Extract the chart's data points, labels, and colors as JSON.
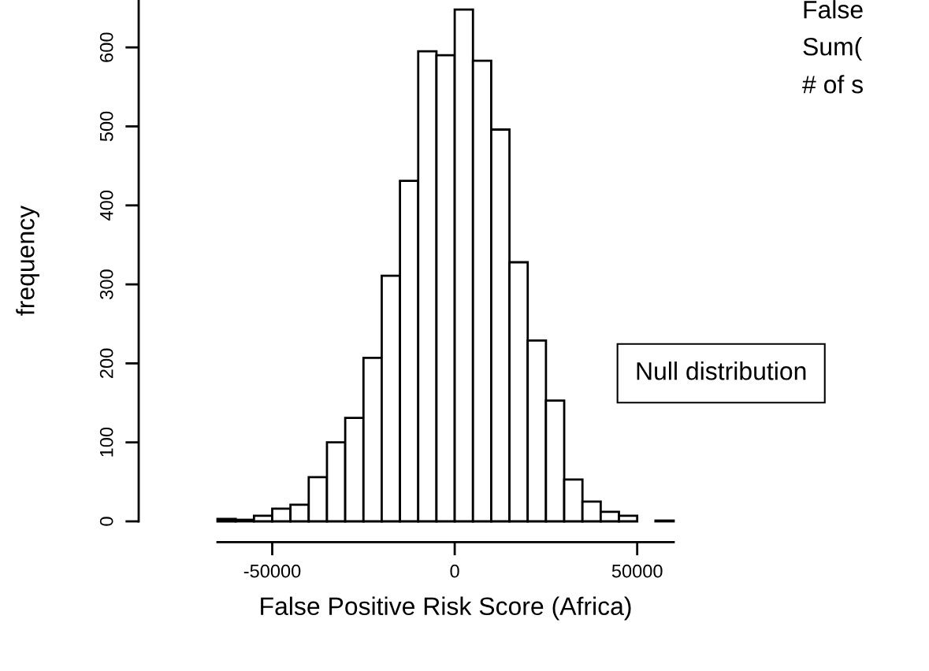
{
  "chart_data": {
    "type": "histogram",
    "xlabel": "False Positive Risk Score (Africa)",
    "ylabel": "frequency",
    "bins": [
      -65000,
      -60000,
      -55000,
      -50000,
      -45000,
      -40000,
      -35000,
      -30000,
      -25000,
      -20000,
      -15000,
      -10000,
      -5000,
      0,
      5000,
      10000,
      15000,
      20000,
      25000,
      30000,
      35000,
      40000,
      45000,
      50000,
      55000,
      60000
    ],
    "values": [
      3,
      2,
      7,
      16,
      21,
      56,
      100,
      131,
      207,
      311,
      431,
      595,
      590,
      648,
      583,
      496,
      328,
      229,
      153,
      53,
      25,
      12,
      7,
      0,
      1
    ],
    "color": "#ffffff",
    "xlim": [
      -65000,
      60000
    ],
    "ylim": [
      0,
      660
    ],
    "xticks": [
      -50000,
      0,
      50000
    ],
    "yticks": [
      0,
      100,
      200,
      300,
      400,
      500,
      600
    ],
    "annotations": [
      "False",
      "Sum(",
      "# of s",
      "Null distribution"
    ]
  }
}
